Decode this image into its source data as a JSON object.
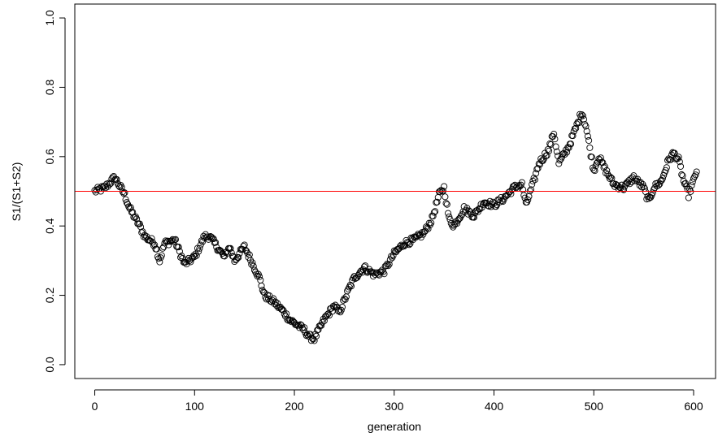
{
  "chart_data": {
    "type": "scatter",
    "title": "",
    "xlabel": "generation",
    "ylabel": "S1/(S1+S2)",
    "xlim": [
      -20,
      622
    ],
    "ylim": [
      -0.04,
      1.04
    ],
    "xticks": [
      0,
      100,
      200,
      300,
      400,
      500,
      600
    ],
    "xtick_labels": [
      "0",
      "100",
      "200",
      "300",
      "400",
      "500",
      "600"
    ],
    "yticks": [
      0.0,
      0.2,
      0.4,
      0.6,
      0.8,
      1.0
    ],
    "ytick_labels": [
      "0.0",
      "0.2",
      "0.4",
      "0.6",
      "0.8",
      "1.0"
    ],
    "grid": false,
    "marker": "open-circle",
    "point_color": "#000000",
    "reference_line": {
      "y": 0.5,
      "color": "#ff0000"
    },
    "keypoints": [
      [
        0,
        0.5
      ],
      [
        10,
        0.51
      ],
      [
        20,
        0.54
      ],
      [
        30,
        0.49
      ],
      [
        35,
        0.45
      ],
      [
        45,
        0.4
      ],
      [
        50,
        0.37
      ],
      [
        60,
        0.35
      ],
      [
        65,
        0.3
      ],
      [
        70,
        0.35
      ],
      [
        80,
        0.36
      ],
      [
        90,
        0.29
      ],
      [
        100,
        0.31
      ],
      [
        110,
        0.37
      ],
      [
        115,
        0.37
      ],
      [
        125,
        0.33
      ],
      [
        130,
        0.31
      ],
      [
        135,
        0.34
      ],
      [
        140,
        0.3
      ],
      [
        150,
        0.34
      ],
      [
        160,
        0.28
      ],
      [
        165,
        0.25
      ],
      [
        170,
        0.2
      ],
      [
        180,
        0.18
      ],
      [
        190,
        0.15
      ],
      [
        195,
        0.13
      ],
      [
        200,
        0.12
      ],
      [
        210,
        0.1
      ],
      [
        215,
        0.08
      ],
      [
        220,
        0.075
      ],
      [
        230,
        0.13
      ],
      [
        240,
        0.17
      ],
      [
        245,
        0.15
      ],
      [
        255,
        0.22
      ],
      [
        260,
        0.25
      ],
      [
        270,
        0.28
      ],
      [
        280,
        0.26
      ],
      [
        290,
        0.27
      ],
      [
        300,
        0.32
      ],
      [
        310,
        0.35
      ],
      [
        320,
        0.36
      ],
      [
        330,
        0.38
      ],
      [
        338,
        0.42
      ],
      [
        345,
        0.49
      ],
      [
        350,
        0.51
      ],
      [
        355,
        0.42
      ],
      [
        360,
        0.4
      ],
      [
        370,
        0.45
      ],
      [
        380,
        0.43
      ],
      [
        390,
        0.47
      ],
      [
        400,
        0.46
      ],
      [
        410,
        0.48
      ],
      [
        420,
        0.51
      ],
      [
        428,
        0.52
      ],
      [
        432,
        0.46
      ],
      [
        440,
        0.53
      ],
      [
        445,
        0.58
      ],
      [
        455,
        0.62
      ],
      [
        460,
        0.67
      ],
      [
        465,
        0.58
      ],
      [
        475,
        0.63
      ],
      [
        483,
        0.69
      ],
      [
        488,
        0.73
      ],
      [
        492,
        0.69
      ],
      [
        500,
        0.56
      ],
      [
        505,
        0.6
      ],
      [
        510,
        0.57
      ],
      [
        520,
        0.52
      ],
      [
        530,
        0.51
      ],
      [
        540,
        0.54
      ],
      [
        550,
        0.51
      ],
      [
        555,
        0.47
      ],
      [
        560,
        0.51
      ],
      [
        568,
        0.53
      ],
      [
        575,
        0.59
      ],
      [
        580,
        0.61
      ],
      [
        585,
        0.59
      ],
      [
        590,
        0.53
      ],
      [
        595,
        0.49
      ],
      [
        600,
        0.53
      ],
      [
        603,
        0.56
      ]
    ]
  }
}
